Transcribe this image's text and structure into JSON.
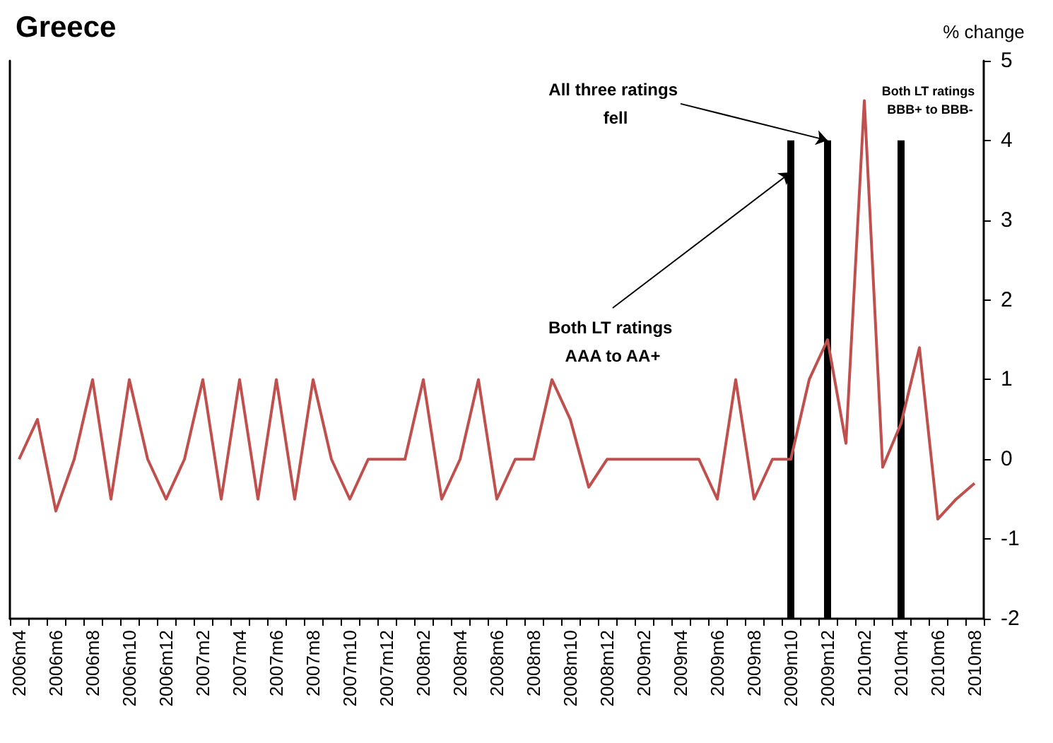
{
  "chart_data": {
    "type": "line",
    "title": "Greece",
    "ylabel": "% change",
    "categories": [
      "2006m4",
      null,
      "2006m6",
      null,
      "2006m8",
      null,
      "2006m10",
      null,
      "2006m12",
      null,
      "2007m2",
      null,
      "2007m4",
      null,
      "2007m6",
      null,
      "2007m8",
      null,
      "2007m10",
      null,
      "2007m12",
      null,
      "2008m2",
      null,
      "2008m4",
      null,
      "2008m6",
      null,
      "2008m8",
      null,
      "2008m10",
      null,
      "2008m12",
      null,
      "2009m2",
      null,
      "2009m4",
      null,
      "2009m6",
      null,
      "2009m8",
      null,
      "2009m10",
      null,
      "2009m12",
      null,
      "2010m2",
      null,
      "2010m4",
      null,
      "2010m6",
      null,
      "2010m8"
    ],
    "series": [
      {
        "color": "#c0504d",
        "values": [
          0,
          0.5,
          -0.65,
          0,
          1,
          -0.5,
          1,
          0,
          -0.5,
          0,
          1,
          -0.5,
          1,
          -0.5,
          1,
          -0.5,
          1,
          0,
          -0.5,
          0,
          0,
          0,
          1,
          -0.5,
          0,
          1,
          -0.5,
          0,
          0,
          1,
          0.5,
          -0.35,
          0,
          0,
          0,
          0,
          0,
          0,
          -0.5,
          1,
          -0.5,
          0,
          0,
          1,
          1.5,
          0.2,
          4.5,
          -0.1,
          0.45,
          1.4,
          -0.75,
          -0.5,
          -0.3
        ]
      },
      {
        "type": "bar",
        "color": "#000000",
        "values": [
          null,
          null,
          null,
          null,
          null,
          null,
          null,
          null,
          null,
          null,
          null,
          null,
          null,
          null,
          null,
          null,
          null,
          null,
          null,
          null,
          null,
          null,
          null,
          null,
          null,
          null,
          null,
          null,
          null,
          null,
          null,
          null,
          null,
          null,
          null,
          null,
          null,
          null,
          null,
          null,
          null,
          null,
          6,
          null,
          6,
          null,
          null,
          null,
          6,
          null,
          null,
          null,
          null
        ],
        "base": [
          null,
          null,
          null,
          null,
          null,
          null,
          null,
          null,
          null,
          null,
          null,
          null,
          null,
          null,
          null,
          null,
          null,
          null,
          null,
          null,
          null,
          null,
          null,
          null,
          null,
          null,
          null,
          null,
          null,
          null,
          null,
          null,
          null,
          null,
          null,
          null,
          null,
          null,
          null,
          null,
          null,
          null,
          -2,
          null,
          -2,
          null,
          null,
          null,
          -2,
          null,
          null,
          null,
          null
        ]
      }
    ],
    "annotations": [
      {
        "text": "All three ratings fell",
        "x": "2009m12",
        "y": 4
      },
      {
        "text": "Both LT ratings AAA to AA+",
        "x": "2009m10",
        "y": 3.6
      },
      "Both LT ratings BBB+ to BBB-"
    ],
    "ylim": [
      -2,
      5
    ],
    "yticks": [
      -2,
      -1,
      0,
      1,
      2,
      3,
      4,
      5
    ],
    "marker": "none",
    "line_style": "solid"
  }
}
